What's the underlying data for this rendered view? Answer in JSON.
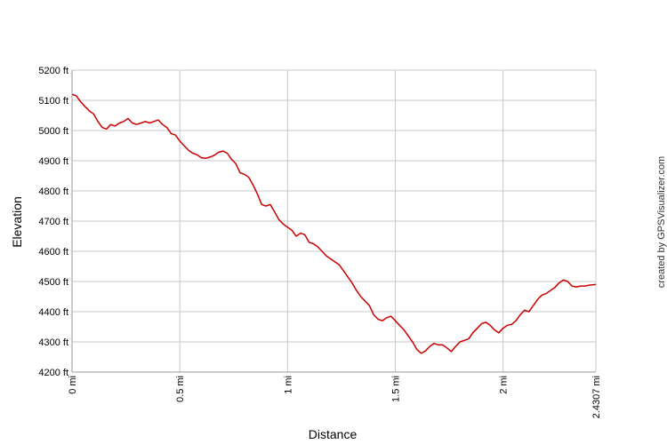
{
  "chart_data": {
    "type": "line",
    "title": "",
    "xlabel": "Distance",
    "ylabel": "Elevation",
    "credit": "created by GPSVisualizer.com",
    "xlim": [
      0,
      2.4307
    ],
    "ylim": [
      4200,
      5200
    ],
    "grid": true,
    "line_color": "#cc0000",
    "grid_color": "#c8c8c8",
    "y_ticks": [
      {
        "value": 4200,
        "label": "4200 ft"
      },
      {
        "value": 4300,
        "label": "4300 ft"
      },
      {
        "value": 4400,
        "label": "4400 ft"
      },
      {
        "value": 4500,
        "label": "4500 ft"
      },
      {
        "value": 4600,
        "label": "4600 ft"
      },
      {
        "value": 4700,
        "label": "4700 ft"
      },
      {
        "value": 4800,
        "label": "4800 ft"
      },
      {
        "value": 4900,
        "label": "4900 ft"
      },
      {
        "value": 5000,
        "label": "5000 ft"
      },
      {
        "value": 5100,
        "label": "5100 ft"
      },
      {
        "value": 5200,
        "label": "5200 ft"
      }
    ],
    "x_ticks": [
      {
        "value": 0,
        "label": "0 mi"
      },
      {
        "value": 0.5,
        "label": "0.5 mi"
      },
      {
        "value": 1,
        "label": "1 mi"
      },
      {
        "value": 1.5,
        "label": "1.5 mi"
      },
      {
        "value": 2,
        "label": "2 mi"
      },
      {
        "value": 2.4307,
        "label": "2.4307 mi"
      }
    ],
    "series": [
      {
        "x": [
          0,
          0.02,
          0.04,
          0.06,
          0.08,
          0.1,
          0.12,
          0.14,
          0.16,
          0.18,
          0.2,
          0.22,
          0.24,
          0.26,
          0.28,
          0.3,
          0.32,
          0.34,
          0.36,
          0.38,
          0.4,
          0.42,
          0.44,
          0.46,
          0.48,
          0.5,
          0.52,
          0.54,
          0.56,
          0.58,
          0.6,
          0.62,
          0.64,
          0.66,
          0.68,
          0.7,
          0.72,
          0.74,
          0.76,
          0.78,
          0.8,
          0.82,
          0.84,
          0.86,
          0.88,
          0.9,
          0.92,
          0.94,
          0.96,
          0.98,
          1.0,
          1.02,
          1.04,
          1.06,
          1.08,
          1.1,
          1.12,
          1.14,
          1.16,
          1.18,
          1.2,
          1.22,
          1.24,
          1.26,
          1.28,
          1.3,
          1.32,
          1.34,
          1.36,
          1.38,
          1.4,
          1.42,
          1.44,
          1.46,
          1.48,
          1.5,
          1.52,
          1.54,
          1.56,
          1.58,
          1.6,
          1.62,
          1.64,
          1.66,
          1.68,
          1.7,
          1.72,
          1.74,
          1.76,
          1.78,
          1.8,
          1.82,
          1.84,
          1.86,
          1.88,
          1.9,
          1.92,
          1.94,
          1.96,
          1.98,
          2.0,
          2.02,
          2.04,
          2.06,
          2.08,
          2.1,
          2.12,
          2.14,
          2.16,
          2.18,
          2.2,
          2.22,
          2.24,
          2.26,
          2.28,
          2.3,
          2.32,
          2.34,
          2.36,
          2.38,
          2.4,
          2.4307
        ],
        "y": [
          5120,
          5115,
          5095,
          5080,
          5065,
          5055,
          5030,
          5010,
          5005,
          5020,
          5015,
          5025,
          5030,
          5040,
          5025,
          5020,
          5025,
          5030,
          5025,
          5030,
          5035,
          5020,
          5010,
          4990,
          4985,
          4965,
          4950,
          4935,
          4925,
          4920,
          4910,
          4908,
          4912,
          4918,
          4928,
          4932,
          4925,
          4905,
          4890,
          4860,
          4855,
          4845,
          4820,
          4790,
          4755,
          4750,
          4755,
          4730,
          4705,
          4690,
          4680,
          4670,
          4650,
          4660,
          4655,
          4630,
          4625,
          4615,
          4600,
          4585,
          4575,
          4565,
          4555,
          4535,
          4515,
          4495,
          4470,
          4450,
          4435,
          4420,
          4390,
          4375,
          4370,
          4380,
          4385,
          4370,
          4355,
          4340,
          4320,
          4300,
          4275,
          4262,
          4270,
          4285,
          4295,
          4290,
          4290,
          4280,
          4268,
          4285,
          4300,
          4305,
          4310,
          4330,
          4345,
          4360,
          4365,
          4355,
          4340,
          4330,
          4345,
          4355,
          4358,
          4370,
          4390,
          4405,
          4400,
          4420,
          4440,
          4455,
          4460,
          4470,
          4480,
          4495,
          4505,
          4500,
          4485,
          4482,
          4485,
          4485,
          4488,
          4490
        ]
      }
    ]
  }
}
